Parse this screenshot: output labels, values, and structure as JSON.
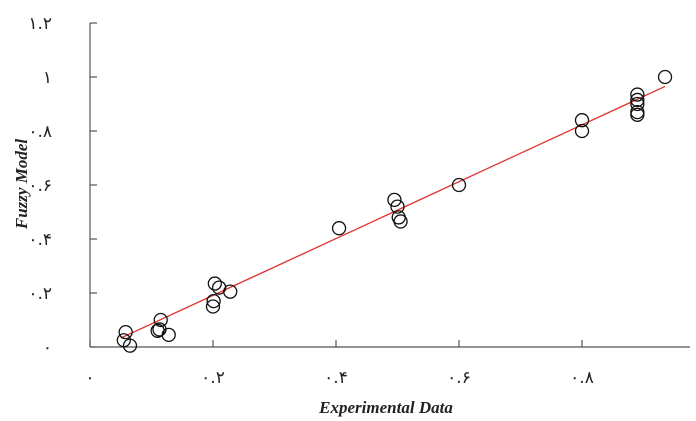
{
  "chart_data": {
    "type": "scatter",
    "xlabel": "Experimental Data",
    "ylabel": "Fuzzy Model",
    "xlim": [
      0,
      1
    ],
    "ylim": [
      0,
      1.2
    ],
    "x_ticks": [
      {
        "value": 0,
        "label": "۰"
      },
      {
        "value": 0.2,
        "label": "۰.۲"
      },
      {
        "value": 0.4,
        "label": "۰.۴"
      },
      {
        "value": 0.6,
        "label": "۰.۶"
      },
      {
        "value": 0.8,
        "label": "۰.۸"
      }
    ],
    "y_ticks": [
      {
        "value": 0,
        "label": "۰"
      },
      {
        "value": 0.2,
        "label": "۰.۲"
      },
      {
        "value": 0.4,
        "label": "۰.۴"
      },
      {
        "value": 0.6,
        "label": "۰.۶"
      },
      {
        "value": 0.8,
        "label": "۰.۸"
      },
      {
        "value": 1.0,
        "label": "۱"
      },
      {
        "value": 1.2,
        "label": "۱.۲"
      }
    ],
    "grid": false,
    "points": [
      {
        "x": 0.055,
        "y": 0.025
      },
      {
        "x": 0.058,
        "y": 0.055
      },
      {
        "x": 0.065,
        "y": 0.005
      },
      {
        "x": 0.11,
        "y": 0.06
      },
      {
        "x": 0.113,
        "y": 0.065
      },
      {
        "x": 0.115,
        "y": 0.1
      },
      {
        "x": 0.128,
        "y": 0.045
      },
      {
        "x": 0.2,
        "y": 0.15
      },
      {
        "x": 0.201,
        "y": 0.17
      },
      {
        "x": 0.203,
        "y": 0.235
      },
      {
        "x": 0.21,
        "y": 0.22
      },
      {
        "x": 0.228,
        "y": 0.205
      },
      {
        "x": 0.405,
        "y": 0.44
      },
      {
        "x": 0.495,
        "y": 0.545
      },
      {
        "x": 0.5,
        "y": 0.52
      },
      {
        "x": 0.502,
        "y": 0.48
      },
      {
        "x": 0.505,
        "y": 0.465
      },
      {
        "x": 0.6,
        "y": 0.6
      },
      {
        "x": 0.8,
        "y": 0.84
      },
      {
        "x": 0.8,
        "y": 0.8
      },
      {
        "x": 0.89,
        "y": 0.86
      },
      {
        "x": 0.89,
        "y": 0.87
      },
      {
        "x": 0.89,
        "y": 0.9
      },
      {
        "x": 0.89,
        "y": 0.915
      },
      {
        "x": 0.89,
        "y": 0.935
      },
      {
        "x": 0.935,
        "y": 1.0
      }
    ],
    "fit_line": {
      "x": [
        0.05,
        0.935
      ],
      "y": [
        0.033,
        0.965
      ],
      "color": "#e0302a"
    },
    "marker_color": "#111111"
  }
}
